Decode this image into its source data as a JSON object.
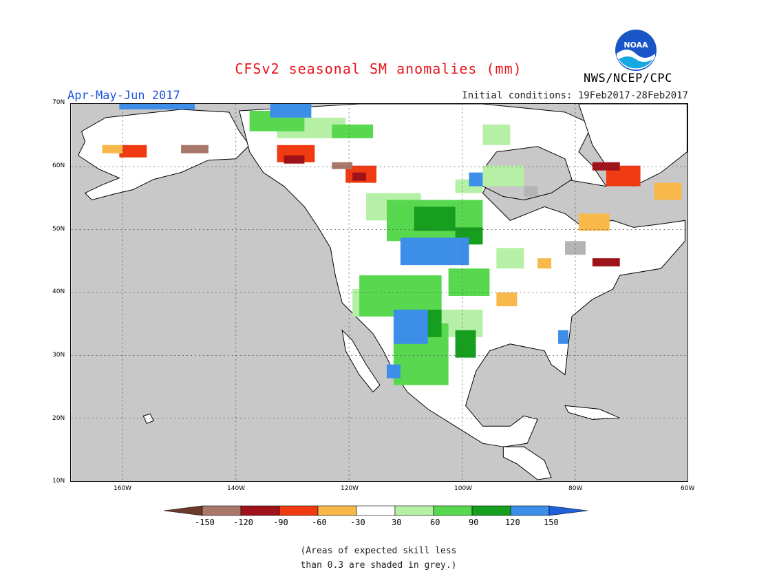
{
  "title": "CFSv2 seasonal SM anomalies (mm)",
  "season_label": "Apr-May-Jun 2017",
  "initial_conditions": "Initial conditions: 19Feb2017-28Feb2017",
  "agency": "NWS/NCEP/CPC",
  "logo_text": "NOAA",
  "lat_labels": [
    "70N",
    "60N",
    "50N",
    "40N",
    "30N",
    "20N",
    "10N"
  ],
  "lon_labels": [
    "160W",
    "140W",
    "120W",
    "100W",
    "80W",
    "60W"
  ],
  "colorbar": {
    "labels": [
      "-150",
      "-120",
      "-90",
      "-60",
      "-30",
      "30",
      "60",
      "90",
      "120",
      "150"
    ],
    "colors": [
      "#6b3a2a",
      "#a9786a",
      "#a0121a",
      "#f03a12",
      "#f8b84a",
      "#ffffff",
      "#b6f0a6",
      "#58d84e",
      "#169e1e",
      "#3c8ee8",
      "#2060d8"
    ]
  },
  "note_lines": [
    "(Areas of expected skill less",
    "than 0.3 are shaded in grey.)"
  ]
}
